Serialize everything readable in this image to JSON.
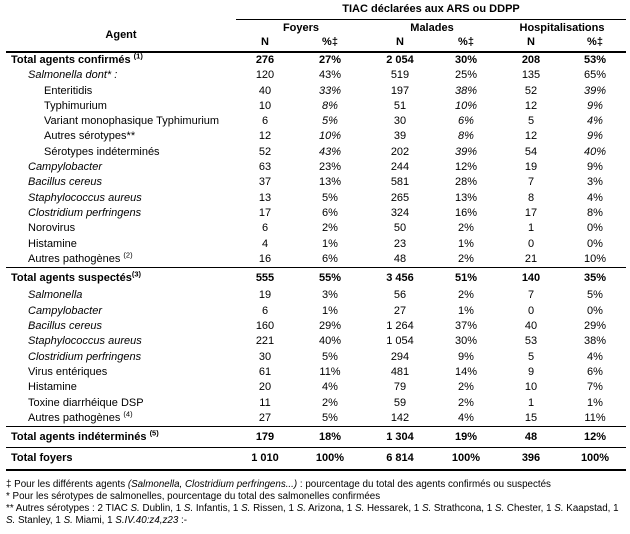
{
  "table": {
    "title": "TIAC déclarées aux ARS ou DDPP",
    "agent_header": "Agent",
    "groups": [
      {
        "label": "Foyers"
      },
      {
        "label": "Malades"
      },
      {
        "label": "Hospitalisations"
      }
    ],
    "subheaders": [
      "N",
      "%‡",
      "N",
      "%‡",
      "N",
      "%‡"
    ],
    "rows": [
      {
        "label": "Total agents confirmés",
        "sup": "(1)",
        "indent": 0,
        "bold": true,
        "values": [
          "276",
          "27%",
          "2 054",
          "30%",
          "208",
          "53%"
        ]
      },
      {
        "label": "Salmonella dont* :",
        "indent": 1,
        "italic": true,
        "values": [
          "120",
          "43%",
          "519",
          "25%",
          "135",
          "65%"
        ]
      },
      {
        "label": "Enteritidis",
        "indent": 2,
        "pct_italic": true,
        "values": [
          "40",
          "33%",
          "197",
          "38%",
          "52",
          "39%"
        ]
      },
      {
        "label": "Typhimurium",
        "indent": 2,
        "pct_italic": true,
        "values": [
          "10",
          "8%",
          "51",
          "10%",
          "12",
          "9%"
        ]
      },
      {
        "label": "Variant monophasique Typhimurium",
        "indent": 2,
        "pct_italic": true,
        "values": [
          "6",
          "5%",
          "30",
          "6%",
          "5",
          "4%"
        ]
      },
      {
        "label": "Autres sérotypes**",
        "indent": 2,
        "pct_italic": true,
        "values": [
          "12",
          "10%",
          "39",
          "8%",
          "12",
          "9%"
        ]
      },
      {
        "label": "Sérotypes indéterminés",
        "indent": 2,
        "pct_italic": true,
        "values": [
          "52",
          "43%",
          "202",
          "39%",
          "54",
          "40%"
        ]
      },
      {
        "label": "Campylobacter",
        "indent": 1,
        "italic": true,
        "values": [
          "63",
          "23%",
          "244",
          "12%",
          "19",
          "9%"
        ]
      },
      {
        "label": "Bacillus cereus",
        "indent": 1,
        "italic": true,
        "values": [
          "37",
          "13%",
          "581",
          "28%",
          "7",
          "3%"
        ]
      },
      {
        "label": "Staphylococcus aureus",
        "indent": 1,
        "italic": true,
        "values": [
          "13",
          "5%",
          "265",
          "13%",
          "8",
          "4%"
        ]
      },
      {
        "label": "Clostridium perfringens",
        "indent": 1,
        "italic": true,
        "values": [
          "17",
          "6%",
          "324",
          "16%",
          "17",
          "8%"
        ]
      },
      {
        "label": "Norovirus",
        "indent": 1,
        "values": [
          "6",
          "2%",
          "50",
          "2%",
          "1",
          "0%"
        ]
      },
      {
        "label": "Histamine",
        "indent": 1,
        "values": [
          "4",
          "1%",
          "23",
          "1%",
          "0",
          "0%"
        ]
      },
      {
        "label": "Autres pathogènes",
        "sup": "(2)",
        "indent": 1,
        "values": [
          "16",
          "6%",
          "48",
          "2%",
          "21",
          "10%"
        ]
      },
      {
        "label": "Total agents suspectés",
        "sup": "(3)",
        "sup_tight": true,
        "indent": 0,
        "bold": true,
        "sep": true,
        "values": [
          "555",
          "55%",
          "3 456",
          "51%",
          "140",
          "35%"
        ]
      },
      {
        "label": "Salmonella",
        "indent": 1,
        "italic": true,
        "values": [
          "19",
          "3%",
          "56",
          "2%",
          "7",
          "5%"
        ]
      },
      {
        "label": "Campylobacter",
        "indent": 1,
        "italic": true,
        "values": [
          "6",
          "1%",
          "27",
          "1%",
          "0",
          "0%"
        ]
      },
      {
        "label": "Bacillus cereus",
        "indent": 1,
        "italic": true,
        "values": [
          "160",
          "29%",
          "1 264",
          "37%",
          "40",
          "29%"
        ]
      },
      {
        "label": "Staphylococcus aureus",
        "indent": 1,
        "italic": true,
        "values": [
          "221",
          "40%",
          "1 054",
          "30%",
          "53",
          "38%"
        ]
      },
      {
        "label": "Clostridium perfringens",
        "indent": 1,
        "italic": true,
        "values": [
          "30",
          "5%",
          "294",
          "9%",
          "5",
          "4%"
        ]
      },
      {
        "label": "Virus entériques",
        "indent": 1,
        "values": [
          "61",
          "11%",
          "481",
          "14%",
          "9",
          "6%"
        ]
      },
      {
        "label": "Histamine",
        "indent": 1,
        "values": [
          "20",
          "4%",
          "79",
          "2%",
          "10",
          "7%"
        ]
      },
      {
        "label": "Toxine diarrhéique DSP",
        "indent": 1,
        "values": [
          "11",
          "2%",
          "59",
          "2%",
          "1",
          "1%"
        ]
      },
      {
        "label": "Autres pathogènes",
        "sup": "(4)",
        "indent": 1,
        "values": [
          "27",
          "5%",
          "142",
          "4%",
          "15",
          "11%"
        ]
      },
      {
        "label": "Total agents indéterminés",
        "sup": "(5)",
        "indent": 0,
        "bold": true,
        "sep": true,
        "values": [
          "179",
          "18%",
          "1 304",
          "19%",
          "48",
          "12%"
        ]
      },
      {
        "label": "Total foyers",
        "indent": 0,
        "bold": true,
        "sep": true,
        "last": true,
        "values": [
          "1 010",
          "100%",
          "6 814",
          "100%",
          "396",
          "100%"
        ]
      }
    ]
  },
  "footnotes": [
    [
      {
        "t": "‡ Pour les différents agents "
      },
      {
        "t": "(Salmonella, Clostridium perfringens...)",
        "i": true
      },
      {
        "t": " : pourcentage du total des agents confirmés ou suspectés"
      }
    ],
    [
      {
        "t": "* Pour les sérotypes de salmonelles, pourcentage du total des salmonelles confirmées"
      }
    ],
    [
      {
        "t": "** Autres sérotypes : 2 TIAC "
      },
      {
        "t": "S.",
        "i": true
      },
      {
        "t": " Dublin, 1 "
      },
      {
        "t": "S.",
        "i": true
      },
      {
        "t": " Infantis, 1 "
      },
      {
        "t": "S.",
        "i": true
      },
      {
        "t": " Rissen, 1 "
      },
      {
        "t": "S.",
        "i": true
      },
      {
        "t": " Arizona, 1 "
      },
      {
        "t": "S.",
        "i": true
      },
      {
        "t": " Hessarek, 1 "
      },
      {
        "t": "S.",
        "i": true
      },
      {
        "t": " Strathcona, 1 "
      },
      {
        "t": "S.",
        "i": true
      },
      {
        "t": " Chester, 1 "
      },
      {
        "t": "S.",
        "i": true
      },
      {
        "t": " Kaapstad, 1 "
      },
      {
        "t": "S.",
        "i": true
      },
      {
        "t": " Stanley, 1 "
      },
      {
        "t": "S.",
        "i": true
      },
      {
        "t": " Miami, 1 "
      },
      {
        "t": "S.IV.40:z4,z23",
        "i": true
      },
      {
        "t": " :-"
      }
    ]
  ]
}
